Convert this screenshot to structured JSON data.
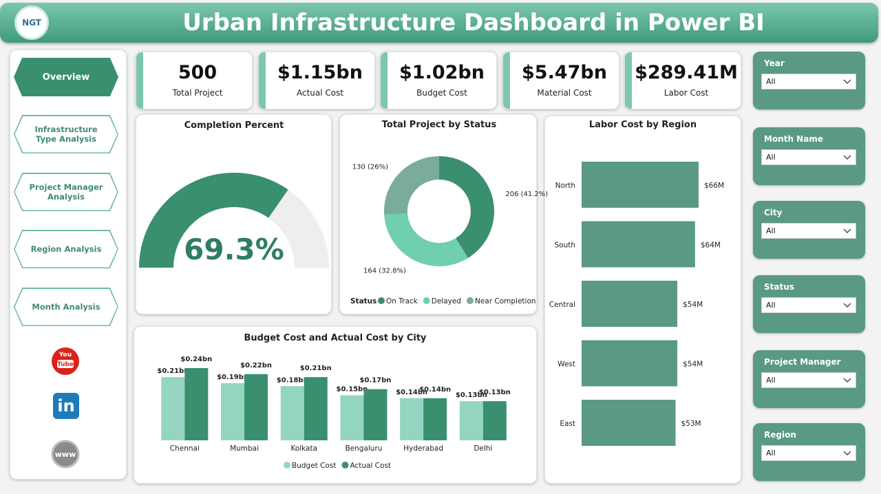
{
  "header": {
    "logo": "NGT",
    "title": "Urban Infrastructure Dashboard in Power BI"
  },
  "nav": [
    "Overview",
    "Infrastructure Type Analysis",
    "Project Manager Analysis",
    "Region Analysis",
    "Month Analysis"
  ],
  "social": {
    "youtube": [
      "You",
      "Tube"
    ],
    "linkedin": "in",
    "website": "www"
  },
  "kpis": [
    {
      "value": 500,
      "label": "Total Project"
    },
    {
      "value": "$1.15bn",
      "label": "Actual Cost"
    },
    {
      "value": "$1.02bn",
      "label": "Budget Cost"
    },
    {
      "value": "$5.47bn",
      "label": "Material Cost"
    },
    {
      "value": "$289.41M",
      "label": "Labor Cost"
    }
  ],
  "filters": [
    {
      "label": "Year",
      "value": "All"
    },
    {
      "label": "Month Name",
      "value": "All"
    },
    {
      "label": "City",
      "value": "All"
    },
    {
      "label": "Status",
      "value": "All"
    },
    {
      "label": "Project Manager",
      "value": "All"
    },
    {
      "label": "Region",
      "value": "All"
    }
  ],
  "chart_data": [
    {
      "type": "gauge",
      "title": "Completion Percent",
      "values": [
        69.3
      ],
      "value_labels": [
        "69.3%"
      ],
      "ylim": [
        0,
        100
      ],
      "color": "#3a8f6f",
      "track_color": "#efeeee"
    },
    {
      "type": "donut",
      "title": "Total Project by Status",
      "categories": [
        "On Track",
        "Delayed",
        "Near Completion"
      ],
      "values": [
        206,
        164,
        130
      ],
      "value_labels": [
        "206 (41.2%)",
        "164 (32.8%)",
        "130 (26%)"
      ],
      "colors": [
        "#3a8f6f",
        "#6fcfb0",
        "#7aab9b"
      ],
      "legend_title": "Status",
      "legend": "bottom"
    },
    {
      "type": "hbar",
      "title": "Labor Cost by Region",
      "categories": [
        "North",
        "South",
        "Central",
        "West",
        "East"
      ],
      "values": [
        66,
        64,
        54,
        54,
        53
      ],
      "value_labels": [
        "$66M",
        "$64M",
        "$54M",
        "$54M",
        "$53M"
      ],
      "color": "#5a9a84"
    },
    {
      "type": "grouped_bar",
      "title": "Budget Cost and Actual Cost by City",
      "categories": [
        "Chennai",
        "Mumbai",
        "Kolkata",
        "Bengaluru",
        "Hyderabad",
        "Delhi"
      ],
      "series": [
        {
          "name": "Budget Cost",
          "color": "#93d5c0",
          "values": [
            0.21,
            0.19,
            0.18,
            0.15,
            0.14,
            0.13
          ],
          "value_labels": [
            "$0.21bn",
            "$0.19bn",
            "$0.18bn",
            "$0.15bn",
            "$0.14bn",
            "$0.13bn"
          ]
        },
        {
          "name": "Actual Cost",
          "color": "#3a8f6f",
          "values": [
            0.24,
            0.22,
            0.21,
            0.17,
            0.14,
            0.13
          ],
          "value_labels": [
            "$0.24bn",
            "$0.22bn",
            "$0.21bn",
            "$0.17bn",
            "$0.14bn",
            "$0.13bn"
          ]
        }
      ],
      "legend": "bottom"
    }
  ]
}
